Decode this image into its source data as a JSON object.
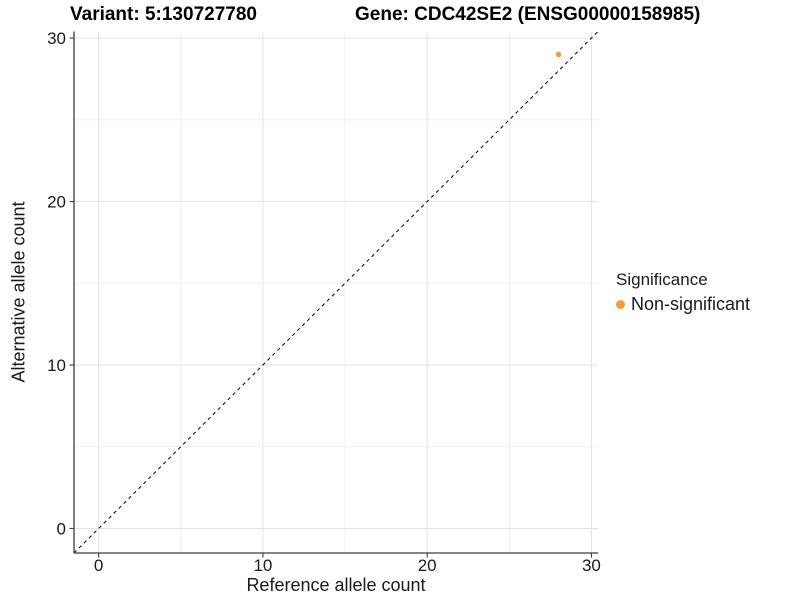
{
  "chart_data": {
    "type": "scatter",
    "title_left": "Variant: 5:130727780",
    "title_right": "Gene: CDC42SE2 (ENSG00000158985)",
    "xlabel": "Reference allele count",
    "ylabel": "Alternative allele count",
    "xlim": [
      -1.5,
      30.4
    ],
    "ylim": [
      -1.5,
      30.4
    ],
    "x_major_ticks": [
      0,
      10,
      20,
      30
    ],
    "y_major_ticks": [
      0,
      10,
      20,
      30
    ],
    "x_minor_ticks": [
      5,
      15,
      25
    ],
    "y_minor_ticks": [
      5,
      15,
      25
    ],
    "grid": true,
    "identity_line": {
      "slope": 1,
      "intercept": 0,
      "style": "dashed",
      "color": "#000000"
    },
    "series": [
      {
        "name": "Non-significant",
        "color": "#FA9E28",
        "points": [
          {
            "x": 28,
            "y": 29
          }
        ]
      }
    ],
    "legend": {
      "title": "Significance",
      "position": "right",
      "items": [
        {
          "label": "Non-significant",
          "color": "#FA9E28"
        }
      ]
    },
    "colors": {
      "background": "#FFFFFF",
      "grid_major": "#E3E3E3",
      "grid_minor": "#EFEFEF",
      "axis_line": "#3C3C3C",
      "text": "#1A1A1A",
      "point": "#FA9E28"
    }
  }
}
